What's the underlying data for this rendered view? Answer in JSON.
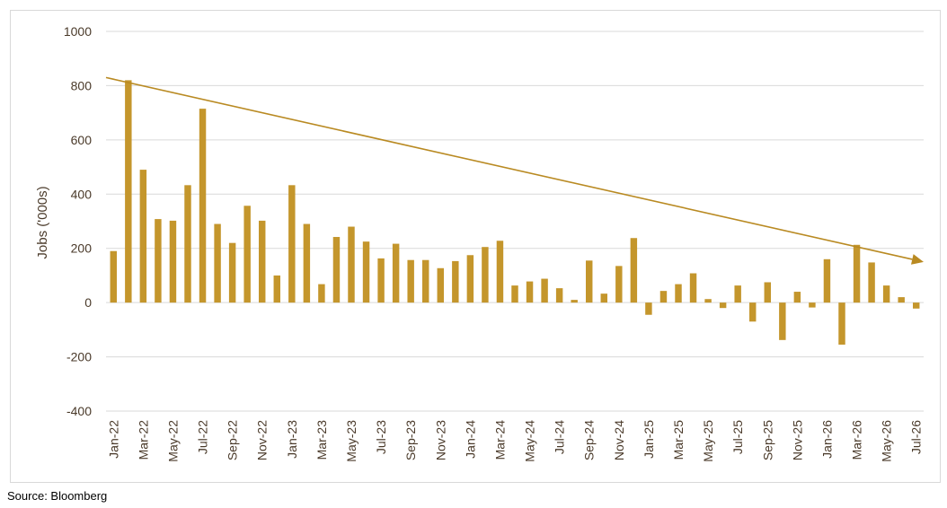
{
  "source_note": "Source: Bloomberg",
  "colors": {
    "bar": "#c4962c",
    "trend": "#b98a22",
    "grid": "#d9d9d9",
    "axis_text": "#4a3a2a",
    "frame": "#d9d9d9"
  },
  "chart_data": {
    "type": "bar",
    "title": "",
    "xlabel": "",
    "ylabel": "Jobs ('000s)",
    "ylim": [
      -400,
      1000
    ],
    "yticks": [
      -400,
      -200,
      0,
      200,
      400,
      600,
      800,
      1000
    ],
    "grid": true,
    "legend": "none",
    "categories": [
      "Jan-22",
      "Feb-22",
      "Mar-22",
      "Apr-22",
      "May-22",
      "Jun-22",
      "Jul-22",
      "Aug-22",
      "Sep-22",
      "Oct-22",
      "Nov-22",
      "Dec-22",
      "Jan-23",
      "Feb-23",
      "Mar-23",
      "Apr-23",
      "May-23",
      "Jun-23",
      "Jul-23",
      "Aug-23",
      "Sep-23",
      "Oct-23",
      "Nov-23",
      "Dec-23",
      "Jan-24",
      "Feb-24",
      "Mar-24",
      "Apr-24",
      "May-24",
      "Jun-24",
      "Jul-24",
      "Aug-24",
      "Sep-24",
      "Oct-24",
      "Nov-24",
      "Dec-24",
      "Jan-25",
      "Feb-25",
      "Mar-25",
      "Apr-25",
      "May-25",
      "Jun-25",
      "Jul-25",
      "Aug-25",
      "Sep-25",
      "Oct-25",
      "Nov-25",
      "Dec-25",
      "Jan-26",
      "Feb-26",
      "Mar-26",
      "Apr-26",
      "May-26",
      "Jun-26",
      "Jul-26"
    ],
    "tick_labels": [
      "Jan-22",
      "Mar-22",
      "May-22",
      "Jul-22",
      "Sep-22",
      "Nov-22",
      "Jan-23",
      "Mar-23",
      "May-23",
      "Jul-23",
      "Sep-23",
      "Nov-23",
      "Jan-24",
      "Mar-24",
      "May-24",
      "Jul-24",
      "Sep-24",
      "Nov-24",
      "Jan-25",
      "Mar-25",
      "May-25",
      "Jul-25",
      "Sep-25",
      "Nov-25",
      "Jan-26",
      "Mar-26",
      "May-26",
      "Jul-26"
    ],
    "values": [
      190,
      820,
      490,
      308,
      302,
      433,
      715,
      290,
      220,
      357,
      302,
      100,
      433,
      290,
      68,
      242,
      280,
      225,
      163,
      217,
      157,
      157,
      127,
      153,
      175,
      205,
      228,
      63,
      78,
      88,
      53,
      10,
      155,
      33,
      135,
      238,
      -45,
      43,
      68,
      108,
      13,
      -20,
      63,
      -70,
      75,
      -138,
      40,
      -18,
      160,
      -155,
      213,
      148,
      63,
      20,
      -22
    ],
    "trend_line": {
      "start": {
        "x": "Jan-22",
        "y": 830
      },
      "end": {
        "x": "Jul-26",
        "y": 150
      }
    }
  }
}
